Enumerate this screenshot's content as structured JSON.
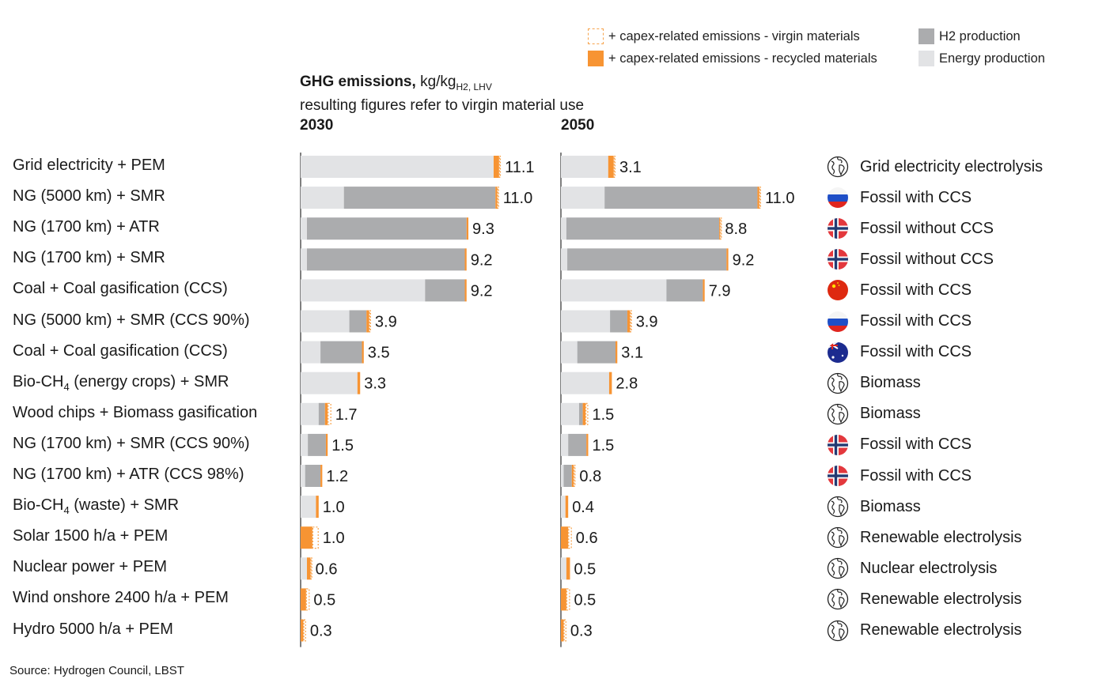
{
  "legend": {
    "virgin": "+ capex-related emissions - virgin materials",
    "recycled": "+ capex-related emissions - recycled materials",
    "h2": "H2 production",
    "energy": "Energy production"
  },
  "title": {
    "bold": "GHG emissions,",
    "unit": "kg/kg",
    "unit_sub": "H2, LHV",
    "subtitle": "resulting figures refer to virgin material use"
  },
  "colors": {
    "energy": "#e2e3e5",
    "h2": "#abacae",
    "recycled": "#f79433",
    "virgin_border": "#f7a24a",
    "axis": "#555555"
  },
  "source": "Source: Hydrogen Council, LBST",
  "rows": [
    {
      "label": "Grid electricity + PEM",
      "sub": "",
      "label_rest": "",
      "category": "Grid electricity electrolysis",
      "icon": "globe-icon"
    },
    {
      "label": "NG (5000 km) + SMR",
      "sub": "",
      "label_rest": "",
      "category": "Fossil with CCS",
      "icon": "russia-flag-icon"
    },
    {
      "label": "NG (1700 km) + ATR",
      "sub": "",
      "label_rest": "",
      "category": "Fossil without CCS",
      "icon": "norway-flag-icon"
    },
    {
      "label": "NG (1700 km) + SMR",
      "sub": "",
      "label_rest": "",
      "category": "Fossil without CCS",
      "icon": "norway-flag-icon"
    },
    {
      "label": "Coal + Coal gasification (CCS)",
      "sub": "",
      "label_rest": "",
      "category": "Fossil with CCS",
      "icon": "china-flag-icon"
    },
    {
      "label": "NG (5000 km) + SMR (CCS 90%)",
      "sub": "",
      "label_rest": "",
      "category": "Fossil with CCS",
      "icon": "russia-flag-icon"
    },
    {
      "label": "Coal + Coal gasification (CCS)",
      "sub": "",
      "label_rest": "",
      "category": "Fossil with CCS",
      "icon": "australia-flag-icon"
    },
    {
      "label": "Bio-CH",
      "sub": "4",
      "label_rest": " (energy crops) + SMR",
      "category": "Biomass",
      "icon": "globe-icon"
    },
    {
      "label": "Wood chips + Biomass gasification",
      "sub": "",
      "label_rest": "",
      "category": "Biomass",
      "icon": "globe-icon"
    },
    {
      "label": "NG (1700 km) + SMR (CCS 90%)",
      "sub": "",
      "label_rest": "",
      "category": "Fossil with CCS",
      "icon": "norway-flag-icon"
    },
    {
      "label": "NG (1700 km) + ATR (CCS 98%)",
      "sub": "",
      "label_rest": "",
      "category": "Fossil with CCS",
      "icon": "norway-flag-icon"
    },
    {
      "label": "Bio-CH",
      "sub": "4",
      "label_rest": " (waste) + SMR",
      "category": "Biomass",
      "icon": "globe-icon"
    },
    {
      "label": "Solar 1500 h/a + PEM",
      "sub": "",
      "label_rest": "",
      "category": "Renewable electrolysis",
      "icon": "globe-icon"
    },
    {
      "label": "Nuclear power + PEM",
      "sub": "",
      "label_rest": "",
      "category": "Nuclear electrolysis",
      "icon": "globe-icon"
    },
    {
      "label": "Wind onshore 2400 h/a + PEM",
      "sub": "",
      "label_rest": "",
      "category": "Renewable electrolysis",
      "icon": "globe-icon"
    },
    {
      "label": "Hydro 5000 h/a + PEM",
      "sub": "",
      "label_rest": "",
      "category": "Renewable electrolysis",
      "icon": "globe-icon"
    }
  ],
  "chart_data": [
    {
      "type": "bar",
      "orientation": "horizontal",
      "stacked": true,
      "title": "2030",
      "ylabel": "GHG emissions, kg/kg H2, LHV",
      "xlim": [
        0,
        11.5
      ],
      "categories": [
        "Grid electricity + PEM",
        "NG (5000 km) + SMR",
        "NG (1700 km) + ATR",
        "NG (1700 km) + SMR",
        "Coal + Coal gasification (CCS)",
        "NG (5000 km) + SMR (CCS 90%)",
        "Coal + Coal gasification (CCS)",
        "Bio-CH4 (energy crops) + SMR",
        "Wood chips + Biomass gasification",
        "NG (1700 km) + SMR (CCS 90%)",
        "NG (1700 km) + ATR (CCS 98%)",
        "Bio-CH4 (waste) + SMR",
        "Solar 1500 h/a + PEM",
        "Nuclear power + PEM",
        "Wind onshore 2400 h/a + PEM",
        "Hydro 5000 h/a + PEM"
      ],
      "series": [
        {
          "name": "Energy production",
          "values": [
            10.7,
            2.4,
            0.35,
            0.35,
            6.9,
            2.7,
            1.1,
            3.15,
            1.0,
            0.4,
            0.25,
            0.85,
            0.0,
            0.35,
            0.0,
            0.0
          ]
        },
        {
          "name": "H2 production",
          "values": [
            0.0,
            8.4,
            8.85,
            8.75,
            2.2,
            0.95,
            2.3,
            0.0,
            0.35,
            1.0,
            0.85,
            0.0,
            0.0,
            0.0,
            0.0,
            0.0
          ]
        },
        {
          "name": "+ capex-related emissions - recycled materials",
          "values": [
            0.3,
            0.1,
            0.1,
            0.1,
            0.1,
            0.15,
            0.1,
            0.15,
            0.15,
            0.1,
            0.1,
            0.15,
            0.65,
            0.2,
            0.3,
            0.15
          ]
        },
        {
          "name": "+ capex-related emissions - virgin materials",
          "values": [
            0.1,
            0.1,
            0.0,
            0.0,
            0.0,
            0.1,
            0.0,
            0.0,
            0.2,
            0.0,
            0.0,
            0.0,
            0.35,
            0.05,
            0.2,
            0.15
          ]
        }
      ],
      "totals": [
        "11.1",
        "11.0",
        "9.3",
        "9.2",
        "9.2",
        "3.9",
        "3.5",
        "3.3",
        "1.7",
        "1.5",
        "1.2",
        "1.0",
        "1.0",
        "0.6",
        "0.5",
        "0.3"
      ]
    },
    {
      "type": "bar",
      "orientation": "horizontal",
      "stacked": true,
      "title": "2050",
      "ylabel": "GHG emissions, kg/kg H2, LHV",
      "xlim": [
        0,
        11.5
      ],
      "categories": [
        "Grid electricity + PEM",
        "NG (5000 km) + SMR",
        "NG (1700 km) + ATR",
        "NG (1700 km) + SMR",
        "Coal + Coal gasification (CCS)",
        "NG (5000 km) + SMR (CCS 90%)",
        "Coal + Coal gasification (CCS)",
        "Bio-CH4 (energy crops) + SMR",
        "Wood chips + Biomass gasification",
        "NG (1700 km) + SMR (CCS 90%)",
        "NG (1700 km) + ATR (CCS 98%)",
        "Bio-CH4 (waste) + SMR",
        "Solar 1500 h/a + PEM",
        "Nuclear power + PEM",
        "Wind onshore 2400 h/a + PEM",
        "Hydro 5000 h/a + PEM"
      ],
      "series": [
        {
          "name": "Energy production",
          "values": [
            2.6,
            2.4,
            0.3,
            0.35,
            5.8,
            2.7,
            0.9,
            2.65,
            1.0,
            0.4,
            0.15,
            0.25,
            0.0,
            0.3,
            0.0,
            0.0
          ]
        },
        {
          "name": "H2 production",
          "values": [
            0.0,
            8.4,
            8.4,
            8.75,
            2.0,
            0.95,
            2.1,
            0.0,
            0.2,
            1.0,
            0.45,
            0.0,
            0.0,
            0.0,
            0.0,
            0.0
          ]
        },
        {
          "name": "+ capex-related emissions - recycled materials",
          "values": [
            0.3,
            0.1,
            0.05,
            0.1,
            0.1,
            0.15,
            0.1,
            0.15,
            0.15,
            0.1,
            0.1,
            0.15,
            0.4,
            0.2,
            0.3,
            0.15
          ]
        },
        {
          "name": "+ capex-related emissions - virgin materials",
          "values": [
            0.1,
            0.1,
            0.05,
            0.0,
            0.0,
            0.1,
            0.0,
            0.0,
            0.15,
            0.0,
            0.1,
            0.0,
            0.2,
            0.0,
            0.2,
            0.15
          ]
        }
      ],
      "totals": [
        "3.1",
        "11.0",
        "8.8",
        "9.2",
        "7.9",
        "3.9",
        "3.1",
        "2.8",
        "1.5",
        "1.5",
        "0.8",
        "0.4",
        "0.6",
        "0.5",
        "0.5",
        "0.3"
      ]
    }
  ]
}
